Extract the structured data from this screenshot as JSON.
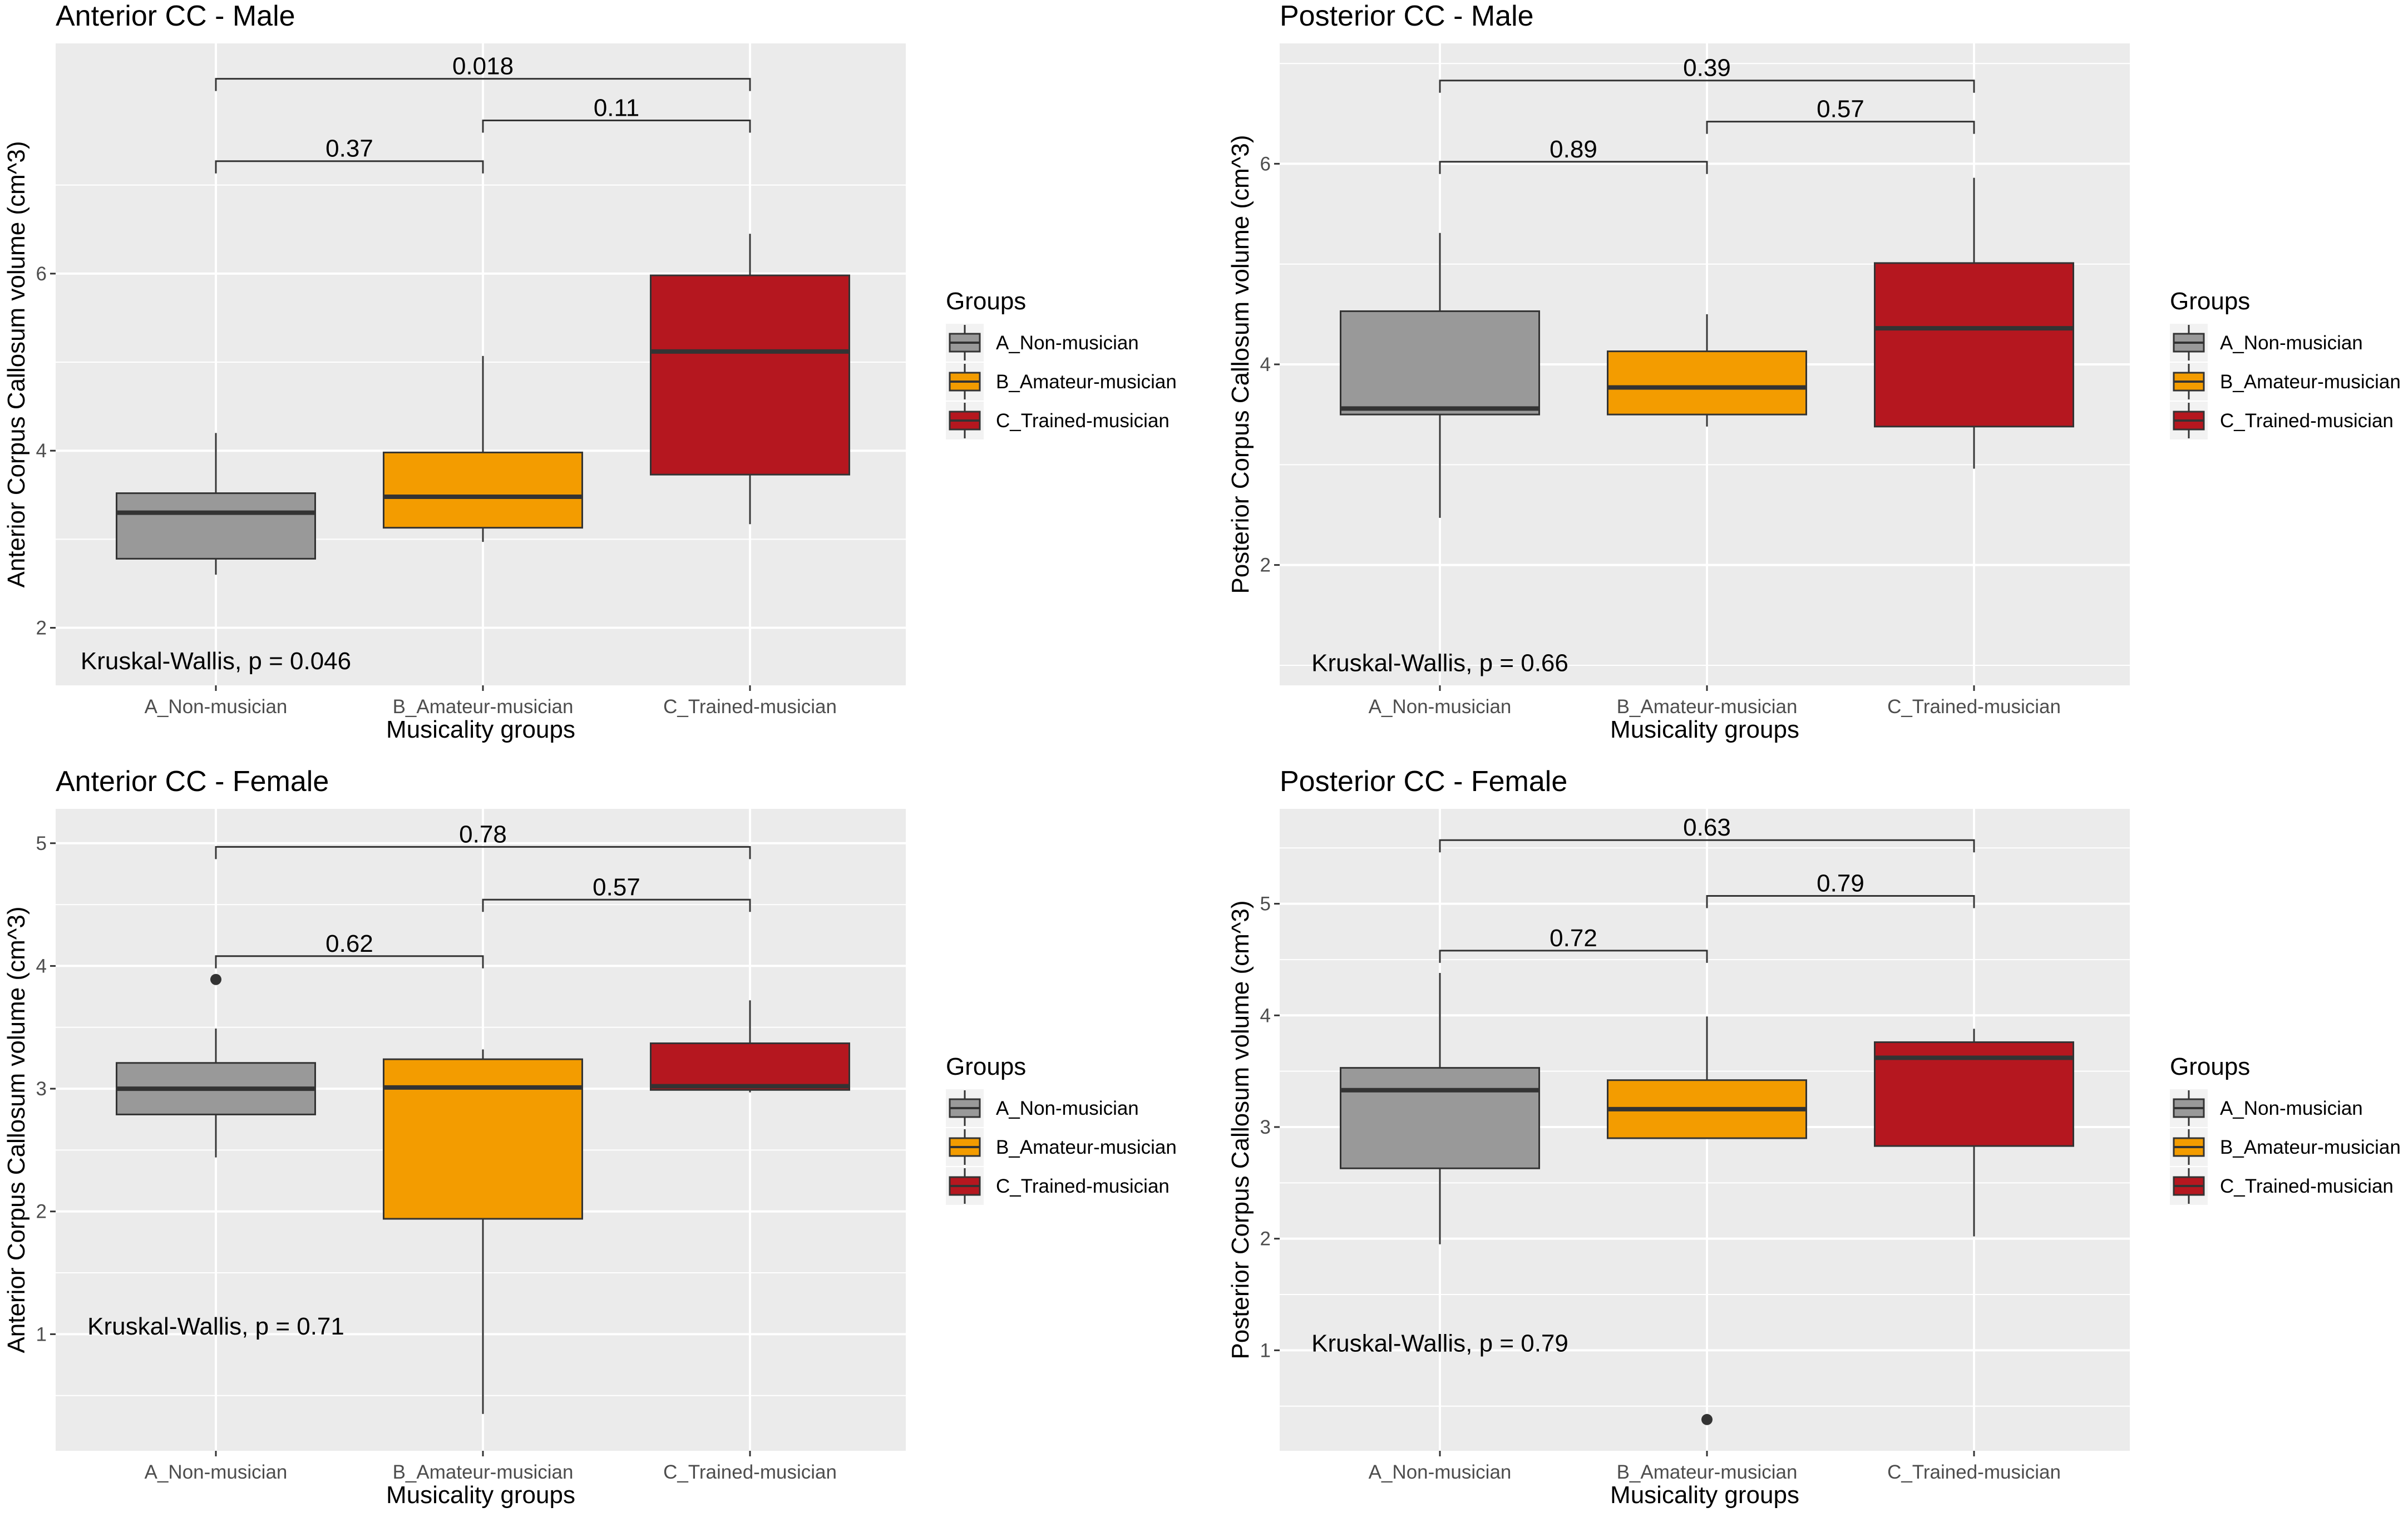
{
  "legend": {
    "title": "Groups",
    "items": [
      {
        "label": "A_Non-musician",
        "color": "#999999"
      },
      {
        "label": "B_Amateur-musician",
        "color": "#F39C00"
      },
      {
        "label": "C_Trained-musician",
        "color": "#B5171F"
      }
    ]
  },
  "colors": {
    "panel_bg": "#EBEBEB",
    "grid": "#FFFFFF",
    "box_edge": "#333333",
    "text": "#000000",
    "tick_text": "#4D4D4D"
  },
  "chart_data": [
    {
      "type": "box",
      "title": "Anterior CC - Male",
      "xlabel": "Musicality groups",
      "ylabel": "Anterior Corpus Callosum volume (cm^3)",
      "categories": [
        "A_Non-musician",
        "B_Amateur-musician",
        "C_Trained-musician"
      ],
      "ylim": [
        1.35,
        8.6
      ],
      "yticks": [
        2,
        4,
        6
      ],
      "ytick_labels": [
        "2",
        "4",
        "6"
      ],
      "boxes": [
        {
          "min": 2.6,
          "q1": 2.78,
          "median": 3.3,
          "q3": 3.52,
          "max": 4.2,
          "outliers": []
        },
        {
          "min": 2.97,
          "q1": 3.13,
          "median": 3.48,
          "q3": 3.98,
          "max": 5.07,
          "outliers": []
        },
        {
          "min": 3.17,
          "q1": 3.73,
          "median": 5.12,
          "q3": 5.98,
          "max": 6.45,
          "outliers": []
        }
      ],
      "comparisons": [
        {
          "from": 0,
          "to": 2,
          "y": 8.2,
          "label": "0.018"
        },
        {
          "from": 1,
          "to": 2,
          "y": 7.73,
          "label": "0.11"
        },
        {
          "from": 0,
          "to": 1,
          "y": 7.27,
          "label": "0.37"
        }
      ],
      "test_label": "Kruskal-Wallis, p = 0.046",
      "test_pos": {
        "x": 1.0,
        "y": 1.62
      }
    },
    {
      "type": "box",
      "title": "Posterior CC - Male",
      "xlabel": "Musicality groups",
      "ylabel": "Posterior Corpus Callosum volume (cm^3)",
      "categories": [
        "A_Non-musician",
        "B_Amateur-musician",
        "C_Trained-musician"
      ],
      "ylim": [
        0.8,
        7.2
      ],
      "yticks": [
        2,
        4,
        6
      ],
      "ytick_labels": [
        "2",
        "4",
        "6"
      ],
      "boxes": [
        {
          "min": 2.47,
          "q1": 3.5,
          "median": 3.56,
          "q3": 4.53,
          "max": 5.31,
          "outliers": []
        },
        {
          "min": 3.38,
          "q1": 3.5,
          "median": 3.77,
          "q3": 4.13,
          "max": 4.5,
          "outliers": []
        },
        {
          "min": 2.96,
          "q1": 3.38,
          "median": 4.36,
          "q3": 5.01,
          "max": 5.86,
          "outliers": []
        }
      ],
      "comparisons": [
        {
          "from": 0,
          "to": 2,
          "y": 6.83,
          "label": "0.39"
        },
        {
          "from": 1,
          "to": 2,
          "y": 6.42,
          "label": "0.57"
        },
        {
          "from": 0,
          "to": 1,
          "y": 6.02,
          "label": "0.89"
        }
      ],
      "test_label": "Kruskal-Wallis, p = 0.66",
      "test_pos": {
        "x": 1.0,
        "y": 1.02
      }
    },
    {
      "type": "box",
      "title": "Anterior CC - Female",
      "xlabel": "Musicality groups",
      "ylabel": "Anterior Corpus Callosum volume (cm^3)",
      "categories": [
        "A_Non-musician",
        "B_Amateur-musician",
        "C_Trained-musician"
      ],
      "ylim": [
        0.05,
        5.28
      ],
      "yticks": [
        1,
        2,
        3,
        4,
        5
      ],
      "ytick_labels": [
        "1",
        "2",
        "3",
        "4",
        "5"
      ],
      "boxes": [
        {
          "min": 2.44,
          "q1": 2.79,
          "median": 3.0,
          "q3": 3.21,
          "max": 3.49,
          "outliers": [
            3.89
          ]
        },
        {
          "min": 0.35,
          "q1": 1.94,
          "median": 3.01,
          "q3": 3.24,
          "max": 3.32,
          "outliers": []
        },
        {
          "min": 2.97,
          "q1": 2.99,
          "median": 3.02,
          "q3": 3.37,
          "max": 3.72,
          "outliers": []
        }
      ],
      "comparisons": [
        {
          "from": 0,
          "to": 2,
          "y": 4.97,
          "label": "0.78"
        },
        {
          "from": 1,
          "to": 2,
          "y": 4.54,
          "label": "0.57"
        },
        {
          "from": 0,
          "to": 1,
          "y": 4.08,
          "label": "0.62"
        }
      ],
      "test_label": "Kruskal-Wallis, p = 0.71",
      "test_pos": {
        "x": 1.0,
        "y": 1.06
      }
    },
    {
      "type": "box",
      "title": "Posterior CC - Female",
      "xlabel": "Musicality groups",
      "ylabel": "Posterior Corpus Callosum volume (cm^3)",
      "categories": [
        "A_Non-musician",
        "B_Amateur-musician",
        "C_Trained-musician"
      ],
      "ylim": [
        0.1,
        5.85
      ],
      "yticks": [
        1,
        2,
        3,
        4,
        5
      ],
      "ytick_labels": [
        "1",
        "2",
        "3",
        "4",
        "5"
      ],
      "boxes": [
        {
          "min": 1.95,
          "q1": 2.63,
          "median": 3.33,
          "q3": 3.53,
          "max": 4.38,
          "outliers": []
        },
        {
          "min": 2.9,
          "q1": 2.9,
          "median": 3.16,
          "q3": 3.42,
          "max": 3.99,
          "outliers": [
            0.38
          ]
        },
        {
          "min": 2.02,
          "q1": 2.83,
          "median": 3.62,
          "q3": 3.76,
          "max": 3.88,
          "outliers": []
        }
      ],
      "comparisons": [
        {
          "from": 0,
          "to": 2,
          "y": 5.57,
          "label": "0.63"
        },
        {
          "from": 1,
          "to": 2,
          "y": 5.07,
          "label": "0.79"
        },
        {
          "from": 0,
          "to": 1,
          "y": 4.58,
          "label": "0.72"
        }
      ],
      "test_label": "Kruskal-Wallis, p = 0.79",
      "test_pos": {
        "x": 1.0,
        "y": 1.06
      }
    }
  ]
}
